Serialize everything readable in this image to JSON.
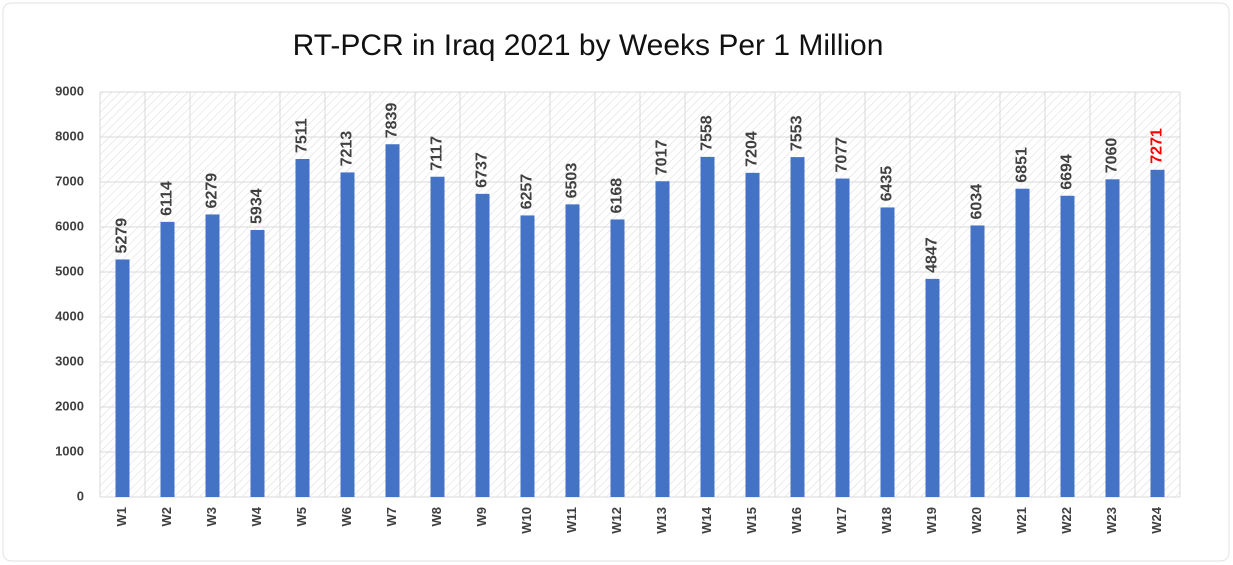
{
  "chart_data": {
    "type": "bar",
    "title": "RT-PCR in Iraq 2021 by Weeks Per 1 Million",
    "categories": [
      "W1",
      "W2",
      "W3",
      "W4",
      "W5",
      "W6",
      "W7",
      "W8",
      "W9",
      "W10",
      "W11",
      "W12",
      "W13",
      "W14",
      "W15",
      "W16",
      "W17",
      "W18",
      "W19",
      "W20",
      "W21",
      "W22",
      "W23",
      "W24"
    ],
    "values": [
      5279,
      6114,
      6279,
      5934,
      7511,
      7213,
      7839,
      7117,
      6737,
      6257,
      6503,
      6168,
      7017,
      7558,
      7204,
      7553,
      7077,
      6435,
      4847,
      6034,
      6851,
      6694,
      7060,
      7271
    ],
    "color": "#4472c4",
    "label_colors": [
      "#404040",
      "#404040",
      "#404040",
      "#404040",
      "#404040",
      "#404040",
      "#404040",
      "#404040",
      "#404040",
      "#404040",
      "#404040",
      "#404040",
      "#404040",
      "#404040",
      "#404040",
      "#404040",
      "#404040",
      "#404040",
      "#404040",
      "#404040",
      "#404040",
      "#404040",
      "#404040",
      "#ff0000"
    ],
    "ylim": [
      0,
      9000
    ],
    "yticks": [
      0,
      1000,
      2000,
      3000,
      4000,
      5000,
      6000,
      7000,
      8000,
      9000
    ],
    "grid": true
  }
}
